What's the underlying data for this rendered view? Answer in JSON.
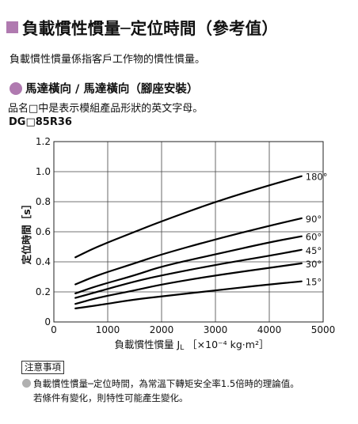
{
  "header": {
    "title": "負載慣性慣量─定位時間（參考值）",
    "accent_color": "#b07ab0"
  },
  "intro": "負載慣性慣量係指客戶工作物的慣性慣量。",
  "section": {
    "title": "馬達橫向 / 馬達橫向（腳座安裝）",
    "model_note": "品名□中是表示模組產品形狀的英文字母。",
    "model_code": "DG□85R36"
  },
  "chart_data": {
    "type": "line",
    "title": "",
    "xlabel": "負載慣性慣量 J",
    "xlabel_sub": "L",
    "xlabel_unit": "［×10⁻⁴ kg·m²］",
    "ylabel": "定位時間［s］",
    "xlim": [
      0,
      5000
    ],
    "ylim": [
      0,
      1.2
    ],
    "x_ticks": [
      "0",
      "1000",
      "2000",
      "3000",
      "4000",
      "5000"
    ],
    "y_ticks": [
      "0",
      "0.2",
      "0.4",
      "0.6",
      "0.8",
      "1.0",
      "1.2"
    ],
    "grid": true,
    "series": [
      {
        "name": "180°",
        "points": [
          [
            400,
            0.43
          ],
          [
            800,
            0.5
          ],
          [
            1500,
            0.6
          ],
          [
            2000,
            0.67
          ],
          [
            3000,
            0.8
          ],
          [
            4000,
            0.91
          ],
          [
            4600,
            0.97
          ]
        ]
      },
      {
        "name": "90°",
        "points": [
          [
            400,
            0.25
          ],
          [
            800,
            0.31
          ],
          [
            1500,
            0.39
          ],
          [
            2000,
            0.45
          ],
          [
            3000,
            0.55
          ],
          [
            4000,
            0.64
          ],
          [
            4600,
            0.69
          ]
        ]
      },
      {
        "name": "60°",
        "points": [
          [
            400,
            0.19
          ],
          [
            800,
            0.24
          ],
          [
            1500,
            0.31
          ],
          [
            2000,
            0.37
          ],
          [
            3000,
            0.45
          ],
          [
            4000,
            0.53
          ],
          [
            4600,
            0.57
          ]
        ]
      },
      {
        "name": "45°",
        "points": [
          [
            400,
            0.16
          ],
          [
            800,
            0.2
          ],
          [
            1500,
            0.27
          ],
          [
            2000,
            0.31
          ],
          [
            3000,
            0.38
          ],
          [
            4000,
            0.44
          ],
          [
            4600,
            0.48
          ]
        ]
      },
      {
        "name": "30°",
        "points": [
          [
            400,
            0.12
          ],
          [
            800,
            0.16
          ],
          [
            1500,
            0.21
          ],
          [
            2000,
            0.25
          ],
          [
            3000,
            0.31
          ],
          [
            4000,
            0.36
          ],
          [
            4600,
            0.39
          ]
        ]
      },
      {
        "name": "15°",
        "points": [
          [
            400,
            0.09
          ],
          [
            800,
            0.11
          ],
          [
            1500,
            0.15
          ],
          [
            2000,
            0.17
          ],
          [
            3000,
            0.21
          ],
          [
            4000,
            0.25
          ],
          [
            4600,
            0.27
          ]
        ]
      }
    ]
  },
  "notice": {
    "tag": "注意事項",
    "line1": "負載慣性慣量─定位時間，為常溫下轉矩安全率1.5倍時的理論值。",
    "line2": "若條件有變化，則特性可能產生變化。"
  }
}
